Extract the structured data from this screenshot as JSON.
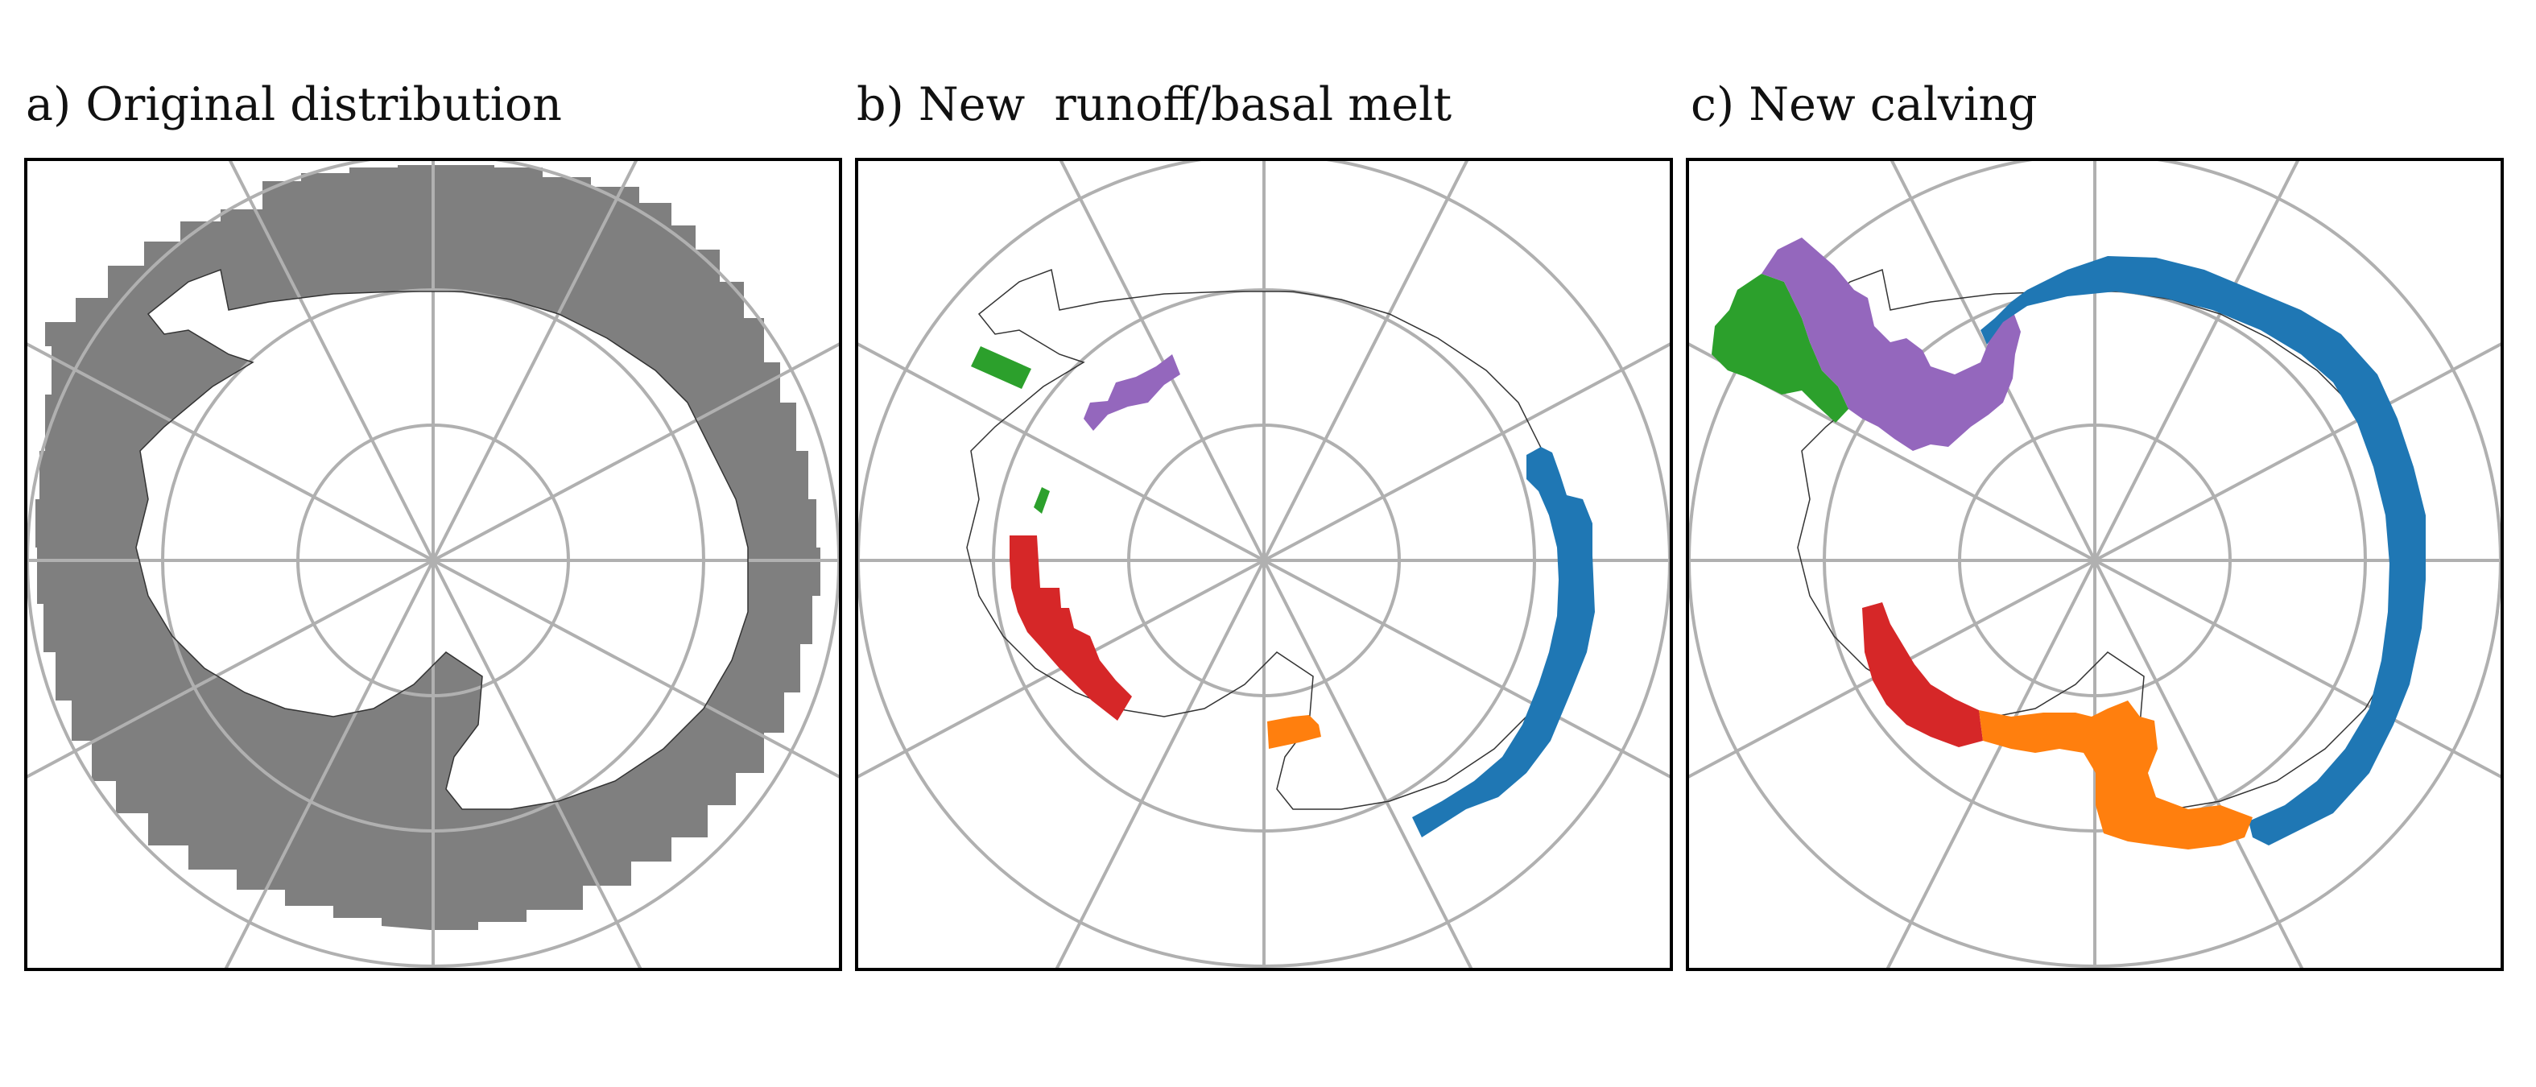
{
  "panels": [
    {
      "id": "a",
      "title": "a) Original distribution"
    },
    {
      "id": "b",
      "title": "b) New  runoff/basal melt"
    },
    {
      "id": "c",
      "title": "c) New calving"
    }
  ],
  "colors": {
    "grid": "#b0b0b0",
    "coast": "#333333",
    "original": "#7f7f7f",
    "blue": "#1f77b4",
    "orange": "#ff7f0e",
    "green": "#2ca02c",
    "red": "#d62728",
    "purple": "#9467bd"
  }
}
